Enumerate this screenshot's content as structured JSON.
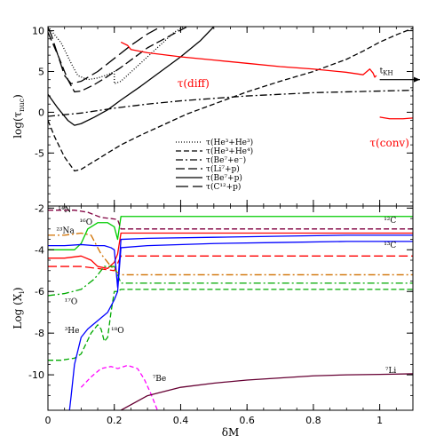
{
  "chart_data": [
    {
      "type": "line",
      "panel": "top",
      "ylabel_main": "log(τ",
      "ylabel_sub": "nuc",
      "ylabel_end": ")",
      "xlim": [
        0,
        1.1
      ],
      "ylim": [
        -11.5,
        10.5
      ],
      "yticks": [
        "-5",
        "0",
        "5",
        "10"
      ],
      "ytick_values": [
        -5,
        0,
        5,
        10
      ],
      "series": [
        {
          "name": "τ(He³+He³)",
          "dash": "1,2",
          "color": "#000000",
          "x": [
            0.0,
            0.04,
            0.07,
            0.09,
            0.12,
            0.15,
            0.18,
            0.2,
            0.2,
            0.22,
            0.26,
            0.3,
            0.34,
            0.38,
            0.41
          ],
          "y": [
            10.5,
            8.5,
            6.0,
            4.5,
            4.0,
            4.2,
            4.6,
            5.0,
            3.5,
            3.8,
            5.3,
            6.8,
            8.3,
            9.8,
            10.5
          ]
        },
        {
          "name": "τ(He³+He⁴)",
          "dash": "6,3",
          "color": "#000000",
          "x": [
            0.0,
            0.02,
            0.05,
            0.08,
            0.1,
            0.14,
            0.18,
            0.22,
            0.28,
            0.35,
            0.42,
            0.5,
            0.6,
            0.7,
            0.8,
            0.9,
            0.95,
            1.0,
            1.05,
            1.1
          ],
          "y": [
            -1.0,
            -3.0,
            -5.5,
            -7.2,
            -7.0,
            -6.0,
            -5.0,
            -4.0,
            -2.8,
            -1.5,
            -0.2,
            1.0,
            2.5,
            3.8,
            5.0,
            6.5,
            7.5,
            8.6,
            9.5,
            10.3
          ]
        },
        {
          "name": "τ(Be⁷+e⁻)",
          "dash": "8,3,2,3",
          "color": "#000000",
          "x": [
            0.0,
            0.1,
            0.2,
            0.3,
            0.4,
            0.5,
            0.6,
            0.7,
            0.8,
            0.9,
            1.0,
            1.1
          ],
          "y": [
            -0.5,
            -0.1,
            0.5,
            1.0,
            1.4,
            1.7,
            2.0,
            2.2,
            2.4,
            2.5,
            2.6,
            2.7
          ]
        },
        {
          "name": "τ(Li⁷+p)",
          "dash": "10,4",
          "color": "#000000",
          "x": [
            0.0,
            0.03,
            0.06,
            0.08,
            0.1,
            0.14,
            0.18,
            0.22,
            0.26,
            0.3,
            0.35,
            0.42
          ],
          "y": [
            9.8,
            7.0,
            4.0,
            2.5,
            2.6,
            3.4,
            4.4,
            5.5,
            6.7,
            7.9,
            9.0,
            10.5
          ]
        },
        {
          "name": "τ(Be⁷+p)",
          "dash": "",
          "color": "#000000",
          "x": [
            0.0,
            0.03,
            0.06,
            0.08,
            0.1,
            0.14,
            0.18,
            0.22,
            0.28,
            0.34,
            0.4,
            0.46,
            0.5
          ],
          "y": [
            2.2,
            0.5,
            -1.0,
            -1.6,
            -1.4,
            -0.6,
            0.3,
            1.5,
            3.2,
            5.0,
            6.8,
            8.8,
            10.5
          ]
        },
        {
          "name": "τ(C¹²+p)",
          "dash": "14,5",
          "color": "#000000",
          "x": [
            0.0,
            0.01,
            0.03,
            0.05,
            0.07,
            0.1,
            0.15,
            0.2,
            0.25,
            0.3,
            0.34
          ],
          "y": [
            10.4,
            9.5,
            7.0,
            4.5,
            3.5,
            3.8,
            5.0,
            6.6,
            8.2,
            9.6,
            10.5
          ]
        },
        {
          "name": "τ(diff)",
          "dash": "",
          "color": "#ff0000",
          "x": [
            0.22,
            0.24,
            0.25,
            0.3,
            0.4,
            0.5,
            0.6,
            0.7,
            0.8,
            0.9,
            0.95,
            0.97,
            0.98,
            0.985,
            0.99
          ],
          "y": [
            8.6,
            8.2,
            7.7,
            7.3,
            6.8,
            6.4,
            6.0,
            5.6,
            5.3,
            4.9,
            4.6,
            5.3,
            4.8,
            4.3,
            4.5
          ]
        },
        {
          "name": "τ(conv)",
          "dash": "",
          "color": "#ff0000",
          "x": [
            1.0,
            1.03,
            1.07,
            1.1
          ],
          "y": [
            -0.6,
            -0.8,
            -0.8,
            -0.7
          ]
        }
      ],
      "annotations": [
        {
          "text": "τ(diff)",
          "x": 0.39,
          "y": 3.1,
          "color": "#ff0000"
        },
        {
          "text": "τ(conv)",
          "x": 0.97,
          "y": -4.2,
          "color": "#ff0000"
        },
        {
          "text": "t",
          "sub": "KH",
          "x": 1.0,
          "y": 4.8,
          "color": "#000000"
        }
      ]
    },
    {
      "type": "line",
      "panel": "bottom",
      "ylabel_main": "Log (X",
      "ylabel_sub": "i",
      "ylabel_end": ")",
      "xlabel": "δM",
      "xlim": [
        0,
        1.1
      ],
      "ylim": [
        -11.7,
        -1.9
      ],
      "xticks": [
        "0",
        "0.2",
        "0.4",
        "0.6",
        "0.8",
        "1"
      ],
      "xtick_values": [
        0,
        0.2,
        0.4,
        0.6,
        0.8,
        1
      ],
      "yticks": [
        "-2",
        "-4",
        "-6",
        "-8",
        "-10"
      ],
      "ytick_values": [
        -2,
        -4,
        -6,
        -8,
        -10
      ],
      "series": [
        {
          "name": "¹²C",
          "dash": "",
          "color": "#00cc00",
          "x": [
            0.0,
            0.08,
            0.1,
            0.12,
            0.15,
            0.18,
            0.2,
            0.21,
            0.22,
            0.3,
            0.5,
            0.7,
            0.9,
            1.1
          ],
          "y": [
            -4.0,
            -4.0,
            -3.7,
            -3.0,
            -2.7,
            -2.7,
            -2.9,
            -3.5,
            -2.4,
            -2.4,
            -2.4,
            -2.4,
            -2.4,
            -2.4
          ]
        },
        {
          "name": "¹⁴N",
          "dash": "6,3",
          "color": "#800040",
          "x": [
            0.0,
            0.05,
            0.08,
            0.12,
            0.16,
            0.19,
            0.21,
            0.22,
            0.3,
            0.5,
            0.7,
            0.9,
            1.1
          ],
          "y": [
            -2.1,
            -2.1,
            -2.1,
            -2.2,
            -2.45,
            -2.5,
            -2.55,
            -3.0,
            -3.0,
            -3.0,
            -3.0,
            -3.0,
            -3.0
          ]
        },
        {
          "name": "¹⁶O",
          "dash": "",
          "color": "#ff0000",
          "x": [
            0.0,
            0.05,
            0.1,
            0.13,
            0.15,
            0.18,
            0.2,
            0.21,
            0.22,
            0.3,
            0.5,
            0.7,
            0.9,
            1.1
          ],
          "y": [
            -4.4,
            -4.4,
            -4.3,
            -4.5,
            -4.8,
            -4.9,
            -4.6,
            -4.2,
            -3.2,
            -3.2,
            -3.2,
            -3.2,
            -3.2,
            -3.2
          ]
        },
        {
          "name": "¹⁶O (dashed)",
          "dash": "10,4",
          "color": "#ff0000",
          "x": [
            0.0,
            0.1,
            0.15,
            0.2,
            0.22,
            0.3,
            0.5,
            0.7,
            0.9,
            1.1
          ],
          "y": [
            -4.8,
            -4.8,
            -4.9,
            -5.0,
            -4.3,
            -4.3,
            -4.3,
            -4.3,
            -4.3,
            -4.3
          ]
        },
        {
          "name": "¹³C",
          "dash": "",
          "color": "#0000ff",
          "x": [
            0.0,
            0.05,
            0.1,
            0.14,
            0.17,
            0.19,
            0.2,
            0.21,
            0.22,
            0.3,
            0.5,
            0.7,
            0.9,
            1.1
          ],
          "y": [
            -3.8,
            -3.8,
            -3.75,
            -3.8,
            -3.8,
            -3.9,
            -4.0,
            -5.8,
            -3.5,
            -3.45,
            -3.4,
            -3.35,
            -3.3,
            -3.3
          ]
        },
        {
          "name": "²³Na",
          "dash": "8,3,2,3",
          "color": "#d07000",
          "x": [
            0.0,
            0.05,
            0.1,
            0.13,
            0.16,
            0.19,
            0.21,
            0.22,
            0.3,
            0.5,
            0.7,
            0.9,
            1.1
          ],
          "y": [
            -3.3,
            -3.3,
            -3.2,
            -3.3,
            -4.2,
            -4.8,
            -5.1,
            -5.2,
            -5.2,
            -5.2,
            -5.2,
            -5.2,
            -5.2
          ]
        },
        {
          "name": "¹⁷O",
          "dash": "8,3,2,3",
          "color": "#00aa00",
          "x": [
            0.0,
            0.05,
            0.1,
            0.14,
            0.17,
            0.2,
            0.21,
            0.22,
            0.3,
            0.5,
            0.7,
            0.9,
            1.1
          ],
          "y": [
            -6.2,
            -6.1,
            -5.9,
            -5.4,
            -4.8,
            -4.8,
            -5.2,
            -5.6,
            -5.6,
            -5.6,
            -5.6,
            -5.6,
            -5.6
          ]
        },
        {
          "name": "¹⁸O",
          "dash": "6,3",
          "color": "#00aa00",
          "x": [
            0.0,
            0.04,
            0.08,
            0.1,
            0.13,
            0.15,
            0.16,
            0.17,
            0.18,
            0.19,
            0.2,
            0.21,
            0.22,
            0.3,
            0.5,
            0.7,
            0.9,
            1.1
          ],
          "y": [
            -9.3,
            -9.3,
            -9.2,
            -9.0,
            -8.0,
            -7.6,
            -7.8,
            -8.4,
            -8.2,
            -7.0,
            -6.0,
            -6.0,
            -5.9,
            -5.9,
            -5.9,
            -5.9,
            -5.9,
            -5.9
          ]
        },
        {
          "name": "³He",
          "dash": "",
          "color": "#0000ff",
          "x": [
            0.065,
            0.07,
            0.08,
            0.1,
            0.12,
            0.15,
            0.18,
            0.2,
            0.21,
            0.22,
            0.3,
            0.5,
            0.7,
            0.9,
            1.1
          ],
          "y": [
            -11.7,
            -11.0,
            -9.5,
            -8.2,
            -7.8,
            -7.4,
            -7.0,
            -6.4,
            -6.0,
            -3.9,
            -3.8,
            -3.7,
            -3.65,
            -3.6,
            -3.6
          ]
        },
        {
          "name": "⁷Be",
          "dash": "5,3",
          "color": "#ff00ff",
          "x": [
            0.1,
            0.13,
            0.16,
            0.19,
            0.21,
            0.24,
            0.27,
            0.29,
            0.31,
            0.33
          ],
          "y": [
            -10.6,
            -10.1,
            -9.7,
            -9.6,
            -9.7,
            -9.55,
            -9.7,
            -10.2,
            -10.9,
            -11.7
          ]
        },
        {
          "name": "⁷Li",
          "dash": "",
          "color": "#660033",
          "x": [
            0.22,
            0.3,
            0.4,
            0.5,
            0.6,
            0.7,
            0.8,
            0.9,
            1.0,
            1.1
          ],
          "y": [
            -11.7,
            -11.0,
            -10.6,
            -10.4,
            -10.25,
            -10.15,
            -10.05,
            -10.0,
            -9.98,
            -9.95
          ]
        }
      ],
      "annotations": [
        {
          "text": "¹⁴N",
          "x": 0.03,
          "y": -2.2,
          "color": "#000000"
        },
        {
          "text": "¹⁶O",
          "x": 0.095,
          "y": -2.8,
          "color": "#000000"
        },
        {
          "text": "²³Na",
          "x": 0.025,
          "y": -3.2,
          "color": "#000000"
        },
        {
          "text": "¹²C",
          "x": 1.05,
          "y": -2.7,
          "color": "#000000"
        },
        {
          "text": "¹³C",
          "x": 1.05,
          "y": -3.9,
          "color": "#000000"
        },
        {
          "text": "¹⁷O",
          "x": 0.05,
          "y": -6.6,
          "color": "#000000"
        },
        {
          "text": "³He",
          "x": 0.05,
          "y": -8.0,
          "color": "#000000"
        },
        {
          "text": "¹⁸O",
          "x": 0.19,
          "y": -8.0,
          "color": "#000000"
        },
        {
          "text": "⁷Be",
          "x": 0.315,
          "y": -10.3,
          "color": "#000000"
        },
        {
          "text": "⁷Li",
          "x": 1.05,
          "y": -9.9,
          "color": "#000000"
        }
      ]
    }
  ]
}
